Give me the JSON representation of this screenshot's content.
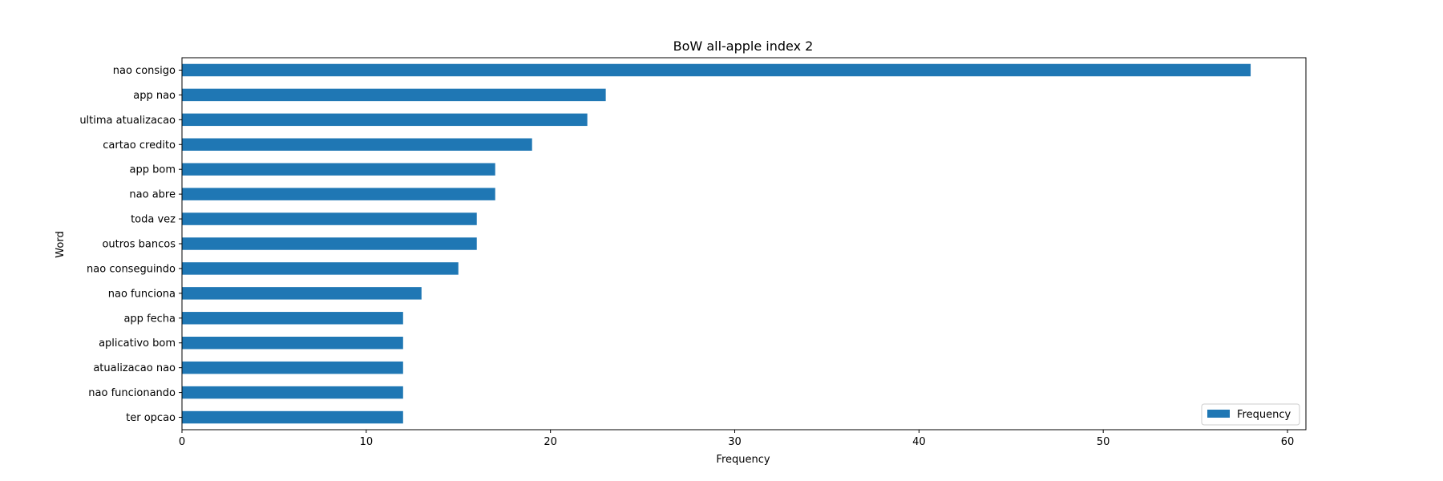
{
  "chart_data": {
    "type": "bar",
    "orientation": "horizontal",
    "title": "BoW all-apple index 2",
    "xlabel": "Frequency",
    "ylabel": "Word",
    "categories": [
      "nao consigo",
      "app nao",
      "ultima atualizacao",
      "cartao credito",
      "app bom",
      "nao abre",
      "toda vez",
      "outros bancos",
      "nao conseguindo",
      "nao funciona",
      "app fecha",
      "aplicativo bom",
      "atualizacao nao",
      "nao funcionando",
      "ter opcao"
    ],
    "series": [
      {
        "name": "Frequency",
        "color": "#1f77b4",
        "values": [
          58,
          23,
          22,
          19,
          17,
          17,
          16,
          16,
          15,
          13,
          12,
          12,
          12,
          12,
          12
        ]
      }
    ],
    "xlim": [
      0,
      61
    ],
    "xticks": [
      0,
      10,
      20,
      30,
      40,
      50,
      60
    ],
    "grid": false,
    "legend": {
      "position": "bottom-right",
      "entries": [
        "Frequency"
      ]
    }
  }
}
